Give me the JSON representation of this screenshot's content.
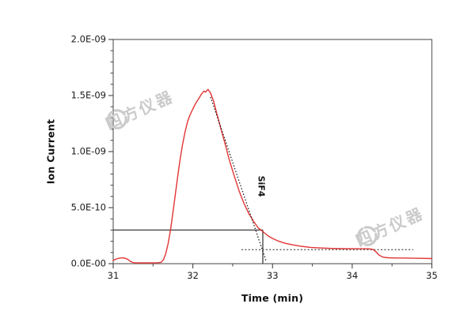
{
  "watermark": {
    "text": "四方仪器"
  },
  "chart_data": {
    "type": "line",
    "title": "",
    "xlabel": "Time (min)",
    "ylabel": "Ion Current",
    "xlim": [
      31,
      35
    ],
    "ylim": [
      0,
      2e-09
    ],
    "grid": false,
    "legend": "none",
    "x_major_ticks": [
      31,
      32,
      33,
      34,
      35
    ],
    "x_tick_labels": [
      "31",
      "32",
      "33",
      "34",
      "35"
    ],
    "x_minor_step": 0.5,
    "y_major_ticks": [
      0,
      5e-10,
      1e-09,
      1.5e-09,
      2e-09
    ],
    "y_tick_labels": [
      "0.0E-00",
      "5.0E-10",
      "1.0E-09",
      "1.5E-09",
      "2.0E-09"
    ],
    "y_minor_step": 1e-10,
    "series": [
      {
        "name": "ion-current-trace",
        "color": "#e23535",
        "points": [
          [
            31.0,
            3e-11
          ],
          [
            31.04,
            4.2e-11
          ],
          [
            31.08,
            5e-11
          ],
          [
            31.13,
            5.2e-11
          ],
          [
            31.18,
            4e-11
          ],
          [
            31.22,
            1.8e-11
          ],
          [
            31.26,
            8e-12
          ],
          [
            31.35,
            7e-12
          ],
          [
            31.45,
            7e-12
          ],
          [
            31.55,
            8e-12
          ],
          [
            31.6,
            1.2e-11
          ],
          [
            31.63,
            3.5e-11
          ],
          [
            31.66,
            9e-11
          ],
          [
            31.69,
            1.8e-10
          ],
          [
            31.72,
            3e-10
          ],
          [
            31.75,
            4.6e-10
          ],
          [
            31.78,
            6.2e-10
          ],
          [
            31.81,
            7.8e-10
          ],
          [
            31.84,
            9.3e-10
          ],
          [
            31.87,
            1.06e-09
          ],
          [
            31.9,
            1.17e-09
          ],
          [
            31.93,
            1.26e-09
          ],
          [
            31.96,
            1.32e-09
          ],
          [
            32.0,
            1.38e-09
          ],
          [
            32.04,
            1.435e-09
          ],
          [
            32.08,
            1.48e-09
          ],
          [
            32.11,
            1.515e-09
          ],
          [
            32.14,
            1.54e-09
          ],
          [
            32.16,
            1.53e-09
          ],
          [
            32.19,
            1.555e-09
          ],
          [
            32.22,
            1.525e-09
          ],
          [
            32.26,
            1.45e-09
          ],
          [
            32.3,
            1.34e-09
          ],
          [
            32.35,
            1.21e-09
          ],
          [
            32.4,
            1.08e-09
          ],
          [
            32.46,
            9.2e-10
          ],
          [
            32.52,
            7.8e-10
          ],
          [
            32.58,
            6.5e-10
          ],
          [
            32.64,
            5.4e-10
          ],
          [
            32.7,
            4.5e-10
          ],
          [
            32.76,
            3.8e-10
          ],
          [
            32.82,
            3.2e-10
          ],
          [
            32.88,
            2.85e-10
          ],
          [
            32.94,
            2.5e-10
          ],
          [
            33.0,
            2.25e-10
          ],
          [
            33.08,
            2e-10
          ],
          [
            33.16,
            1.82e-10
          ],
          [
            33.25,
            1.68e-10
          ],
          [
            33.35,
            1.56e-10
          ],
          [
            33.48,
            1.45e-10
          ],
          [
            33.6,
            1.4e-10
          ],
          [
            33.75,
            1.36e-10
          ],
          [
            33.9,
            1.34e-10
          ],
          [
            34.05,
            1.33e-10
          ],
          [
            34.2,
            1.33e-10
          ],
          [
            34.26,
            1.28e-10
          ],
          [
            34.3,
            1.05e-10
          ],
          [
            34.34,
            7.5e-11
          ],
          [
            34.39,
            5.8e-11
          ],
          [
            34.45,
            5.3e-11
          ],
          [
            34.55,
            5.1e-11
          ],
          [
            34.7,
            5e-11
          ],
          [
            34.85,
            4.8e-11
          ],
          [
            35.0,
            4.6e-11
          ]
        ]
      }
    ],
    "annotations": {
      "peak_label": "SiF4",
      "peak_label_pos": [
        32.86,
        6.9e-10
      ],
      "solid_hline": {
        "y": 3e-10,
        "x1": 31.0,
        "x2": 32.878
      },
      "solid_vline": {
        "x": 32.878,
        "y1": 0,
        "y2": 3e-10
      },
      "tangent_line": {
        "x1": 32.222,
        "y1": 1.486e-09,
        "x2": 32.918,
        "y2": 2.8e-11
      },
      "dotted_hline": {
        "y": 1.25e-10,
        "x1": 32.61,
        "x2": 34.766
      }
    },
    "colors": {
      "trace": "#e23535",
      "frame": "#6e6e6e",
      "tick": "#444444",
      "annotation_solid": "#3c3c3c",
      "annotation_dotted": "#1a1a1a",
      "dotted_baseline": "#4a4a4a",
      "watermark": "#cbcbcb"
    }
  }
}
